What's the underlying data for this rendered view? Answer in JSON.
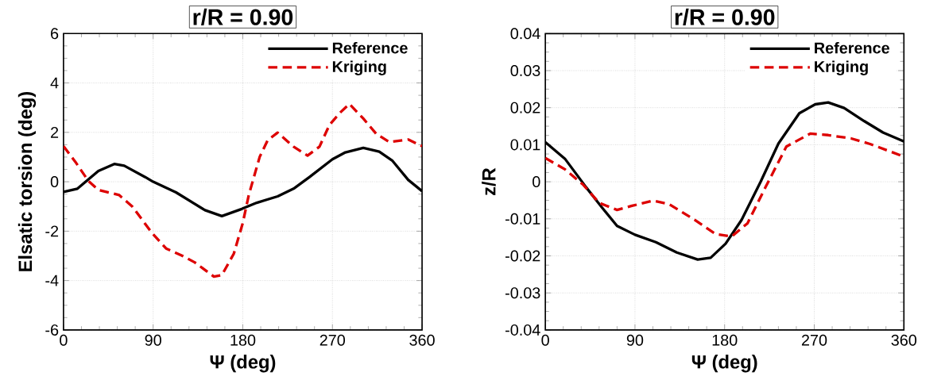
{
  "chart_data": [
    {
      "type": "line",
      "title": "r/R = 0.90",
      "xlabel": "Ψ (deg)",
      "ylabel": "Elsatic torsion (deg)",
      "xlim": [
        0,
        360
      ],
      "ylim": [
        -6,
        6
      ],
      "xticks": [
        0,
        90,
        180,
        270,
        360
      ],
      "yticks": [
        -6,
        -4,
        -2,
        0,
        2,
        4,
        6
      ],
      "grid": true,
      "legend": "top right",
      "series": [
        {
          "name": "Reference",
          "color": "#000000",
          "line_style": "solid",
          "x": [
            0,
            14,
            35,
            51,
            61,
            82,
            90,
            113,
            142,
            159,
            179,
            194,
            215,
            231,
            247,
            270,
            283,
            301,
            317,
            330,
            346,
            360
          ],
          "values": [
            -0.41,
            -0.28,
            0.44,
            0.72,
            0.65,
            0.19,
            0,
            -0.43,
            -1.15,
            -1.39,
            -1.1,
            -0.85,
            -0.59,
            -0.28,
            0.19,
            0.91,
            1.19,
            1.37,
            1.22,
            0.86,
            0.08,
            -0.38
          ]
        },
        {
          "name": "Kriging",
          "color": "#dd0000",
          "line_style": "dashed",
          "x": [
            0,
            12,
            25,
            35,
            56,
            69,
            89,
            103,
            119,
            132,
            151,
            159,
            171,
            180,
            186,
            197,
            205,
            215,
            231,
            245,
            257,
            267,
            278,
            287,
            301,
            314,
            327,
            346,
            360
          ],
          "values": [
            1.44,
            0.8,
            0.03,
            -0.33,
            -0.54,
            -1.0,
            -2.08,
            -2.7,
            -2.99,
            -3.27,
            -3.84,
            -3.78,
            -2.91,
            -1.67,
            -0.54,
            1.01,
            1.68,
            1.99,
            1.42,
            1.06,
            1.42,
            2.3,
            2.81,
            3.15,
            2.56,
            1.94,
            1.61,
            1.71,
            1.44
          ]
        }
      ]
    },
    {
      "type": "line",
      "title": "r/R = 0.90",
      "xlabel": "Ψ (deg)",
      "ylabel": "z/R",
      "xlim": [
        0,
        360
      ],
      "ylim": [
        -0.04,
        0.04
      ],
      "xticks": [
        0,
        90,
        180,
        270,
        360
      ],
      "yticks": [
        -0.04,
        -0.03,
        -0.02,
        -0.01,
        0,
        0.01,
        0.02,
        0.03,
        0.04
      ],
      "grid": true,
      "legend": "top right",
      "series": [
        {
          "name": "Reference",
          "color": "#000000",
          "line_style": "solid",
          "x": [
            0,
            20,
            41,
            57,
            72,
            90,
            111,
            132,
            153,
            166,
            181,
            197,
            216,
            234,
            255,
            271,
            284,
            300,
            320,
            339,
            360
          ],
          "values": [
            0.0107,
            0.0061,
            -0.0015,
            -0.007,
            -0.0119,
            -0.0143,
            -0.0163,
            -0.0191,
            -0.021,
            -0.0205,
            -0.0167,
            -0.0103,
            -0.0001,
            0.0103,
            0.0185,
            0.0209,
            0.0214,
            0.0199,
            0.0164,
            0.0133,
            0.0109
          ]
        },
        {
          "name": "Kriging",
          "color": "#dd0000",
          "line_style": "dashed",
          "x": [
            0,
            20,
            38,
            54,
            72,
            87,
            108,
            124,
            150,
            171,
            187,
            203,
            221,
            242,
            266,
            284,
            307,
            326,
            360
          ],
          "values": [
            0.0064,
            0.0033,
            -0.0008,
            -0.0057,
            -0.0076,
            -0.0065,
            -0.0051,
            -0.006,
            -0.0103,
            -0.0141,
            -0.0148,
            -0.0112,
            -0.0015,
            0.0095,
            0.013,
            0.0126,
            0.0117,
            0.0102,
            0.0068
          ]
        }
      ]
    }
  ]
}
